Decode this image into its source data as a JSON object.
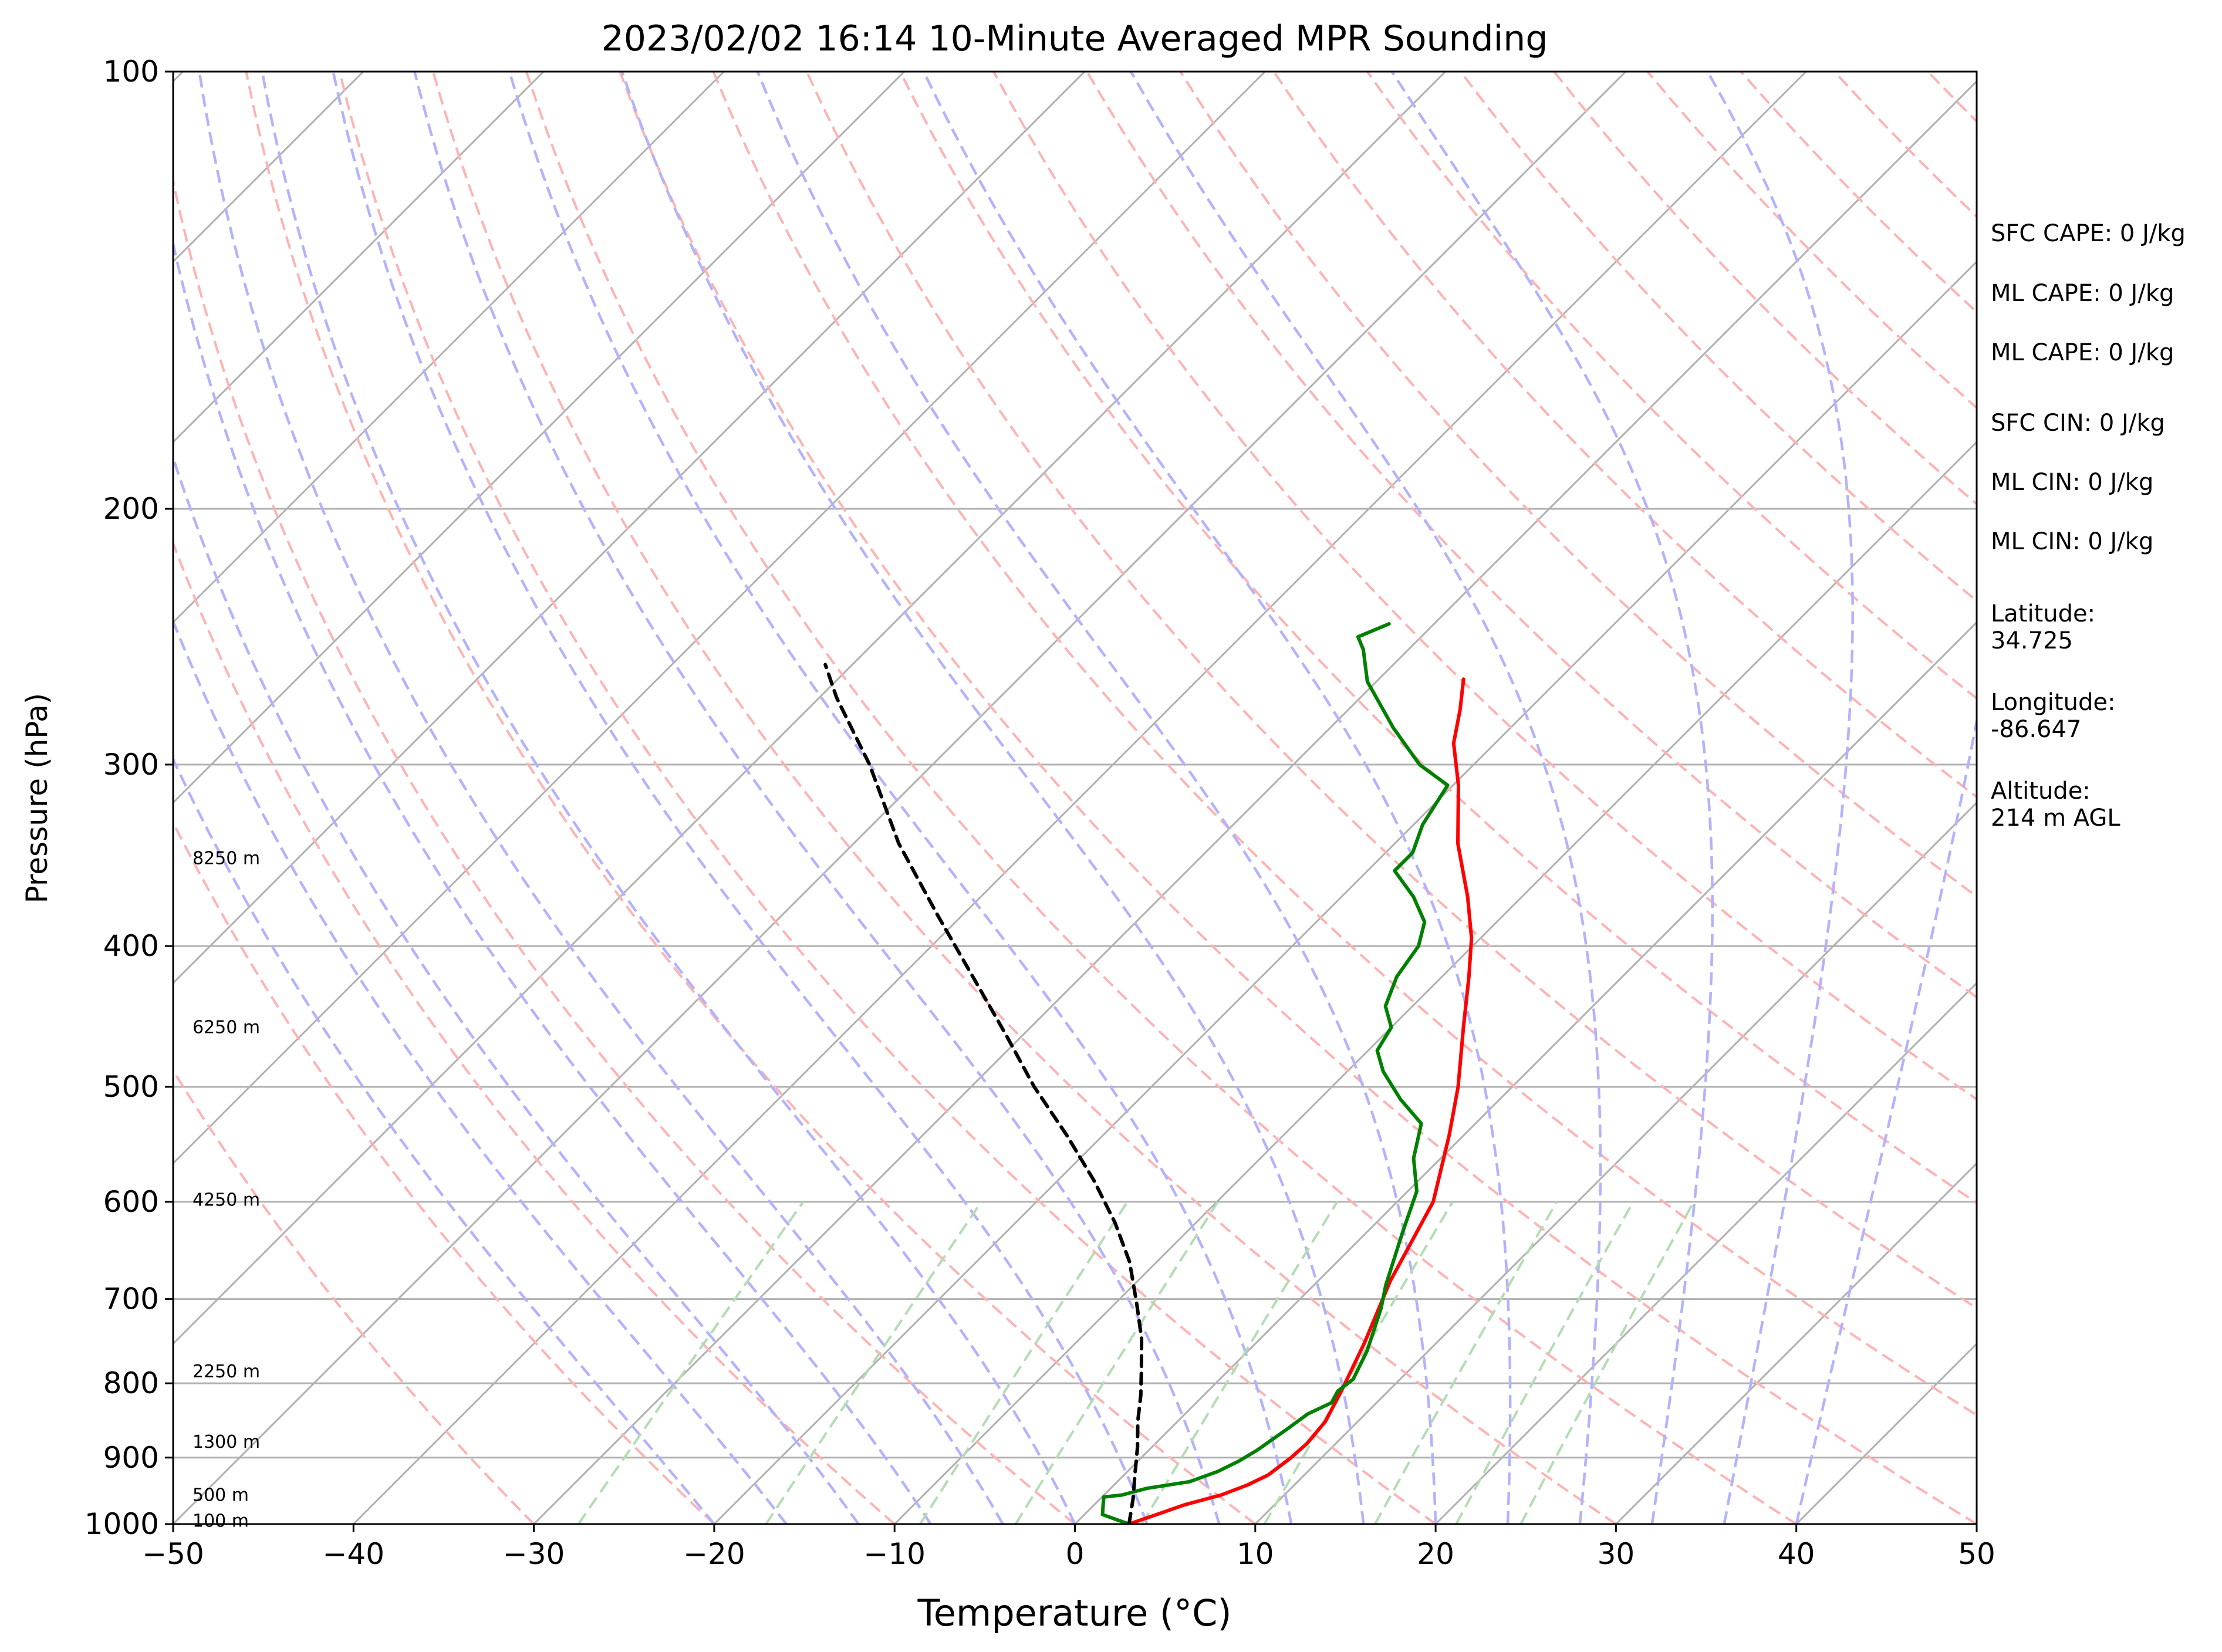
{
  "chart_data": {
    "type": "line",
    "title": "2023/02/02 16:14 10-Minute Averaged MPR Sounding",
    "xlabel": "Temperature (°C)",
    "ylabel": "Pressure (hPa)",
    "xlim": [
      -50,
      50
    ],
    "ylim": [
      1000,
      100
    ],
    "y_scale": "log",
    "x_ticks": [
      -50,
      -40,
      -30,
      -20,
      -10,
      0,
      10,
      20,
      30,
      40,
      50
    ],
    "x_tick_labels": [
      "−50",
      "−40",
      "−30",
      "−20",
      "−10",
      "0",
      "10",
      "20",
      "30",
      "40",
      "50"
    ],
    "y_ticks": [
      1000,
      900,
      800,
      700,
      600,
      500,
      400,
      300,
      200,
      100
    ],
    "y_tick_labels": [
      "1000",
      "900",
      "800",
      "700",
      "600",
      "500",
      "400",
      "300",
      "200",
      "100"
    ],
    "skew_degrees": 45,
    "grid": true,
    "series": [
      {
        "kind": "temperature",
        "color": "#ff0000",
        "points": [
          [
            3.0,
            1000
          ],
          [
            4.0,
            985
          ],
          [
            5.0,
            970
          ],
          [
            6.5,
            955
          ],
          [
            7.4,
            940
          ],
          [
            8.0,
            925
          ],
          [
            8.3,
            900
          ],
          [
            8.4,
            880
          ],
          [
            8.2,
            850
          ],
          [
            7.4,
            810
          ],
          [
            6.0,
            750
          ],
          [
            4.0,
            680
          ],
          [
            2.0,
            600
          ],
          [
            -0.8,
            540
          ],
          [
            -3.0,
            500
          ],
          [
            -6.0,
            455
          ],
          [
            -8.5,
            420
          ],
          [
            -10.5,
            395
          ],
          [
            -13.0,
            370
          ],
          [
            -16.5,
            340
          ],
          [
            -19.7,
            310
          ],
          [
            -22.3,
            290
          ],
          [
            -23.8,
            275
          ],
          [
            -25.3,
            262
          ]
        ]
      },
      {
        "kind": "dewpoint",
        "color": "#008000",
        "points": [
          [
            3.0,
            1000
          ],
          [
            1.0,
            985
          ],
          [
            0.5,
            970
          ],
          [
            0.1,
            958
          ],
          [
            1.0,
            955
          ],
          [
            1.5,
            950
          ],
          [
            2.0,
            945
          ],
          [
            4.0,
            935
          ],
          [
            5.0,
            920
          ],
          [
            5.6,
            905
          ],
          [
            6.0,
            890
          ],
          [
            6.5,
            860
          ],
          [
            6.8,
            840
          ],
          [
            7.5,
            825
          ],
          [
            7.2,
            810
          ],
          [
            7.4,
            795
          ],
          [
            6.6,
            760
          ],
          [
            5.0,
            710
          ],
          [
            4.0,
            685
          ],
          [
            2.0,
            630
          ],
          [
            0.5,
            590
          ],
          [
            -1.5,
            560
          ],
          [
            -3.0,
            530
          ],
          [
            -5.5,
            510
          ],
          [
            -8.0,
            488
          ],
          [
            -9.5,
            472
          ],
          [
            -10.0,
            455
          ],
          [
            -11.5,
            440
          ],
          [
            -12.5,
            420
          ],
          [
            -13.0,
            400
          ],
          [
            -14.0,
            385
          ],
          [
            -16.0,
            370
          ],
          [
            -18.5,
            355
          ],
          [
            -18.5,
            345
          ],
          [
            -19.5,
            330
          ],
          [
            -20.3,
            310
          ],
          [
            -23.0,
            300
          ],
          [
            -26.5,
            283
          ],
          [
            -30.5,
            263
          ],
          [
            -32.5,
            250
          ],
          [
            -33.5,
            245
          ],
          [
            -32.5,
            240
          ]
        ]
      },
      {
        "kind": "parcel",
        "color": "#000000",
        "style": "dashed",
        "points": [
          [
            3.0,
            1000
          ],
          [
            1.8,
            960
          ],
          [
            0.6,
            925
          ],
          [
            -0.8,
            885
          ],
          [
            -2.2,
            850
          ],
          [
            -3.5,
            815
          ],
          [
            -5.0,
            780
          ],
          [
            -6.6,
            745
          ],
          [
            -8.8,
            705
          ],
          [
            -11.5,
            660
          ],
          [
            -14.5,
            620
          ],
          [
            -18.0,
            580
          ],
          [
            -22.0,
            540
          ],
          [
            -26.5,
            500
          ],
          [
            -31.0,
            460
          ],
          [
            -36.0,
            420
          ],
          [
            -41.5,
            380
          ],
          [
            -47.5,
            340
          ],
          [
            -53.5,
            300
          ],
          [
            -59.0,
            270
          ],
          [
            -61.5,
            256
          ]
        ]
      }
    ],
    "dry_adiabat_thetas_c": [
      -30,
      -20,
      -10,
      0,
      10,
      20,
      30,
      40,
      50,
      60,
      70,
      80,
      90,
      100,
      110,
      120,
      130,
      140,
      150,
      160,
      170,
      180,
      190,
      200,
      210,
      220,
      230,
      240,
      250
    ],
    "moist_adiabat_starts_c": [
      -20,
      -16,
      -12,
      -8,
      -4,
      0,
      4,
      8,
      12,
      16,
      20,
      24,
      28,
      32,
      36,
      40
    ],
    "mixing_ratio_lines_gkg": [
      0.4,
      1,
      2,
      3,
      5,
      8,
      12,
      16,
      20
    ],
    "height_labels": [
      {
        "label": "8250 m",
        "pressure": 348
      },
      {
        "label": "6250 m",
        "pressure": 455
      },
      {
        "label": "4250 m",
        "pressure": 598
      },
      {
        "label": "2250 m",
        "pressure": 785
      },
      {
        "label": "1300 m",
        "pressure": 878
      },
      {
        "label": "500 m",
        "pressure": 955
      },
      {
        "label": "100 m",
        "pressure": 995
      }
    ],
    "colors": {
      "isotherm": "#b0b0b0",
      "isobar": "#b0b0b0",
      "dry_adiabat": "#ffb2b2",
      "moist_adiabat": "#b2b2ff",
      "mixing_ratio": "#b2dcb2"
    }
  },
  "indices": [
    {
      "label": "SFC CAPE: 0 J/kg"
    },
    {
      "label": "ML CAPE: 0 J/kg"
    },
    {
      "label": "ML CAPE: 0 J/kg"
    },
    {
      "label": "SFC CIN: 0 J/kg"
    },
    {
      "label": "ML CIN: 0 J/kg"
    },
    {
      "label": "ML CIN: 0 J/kg"
    }
  ],
  "station": {
    "latitude_label": "Latitude:",
    "latitude_value": "34.725",
    "longitude_label": "Longitude:",
    "longitude_value": "-86.647",
    "altitude_label": "Altitude:",
    "altitude_value": "214 m AGL"
  }
}
